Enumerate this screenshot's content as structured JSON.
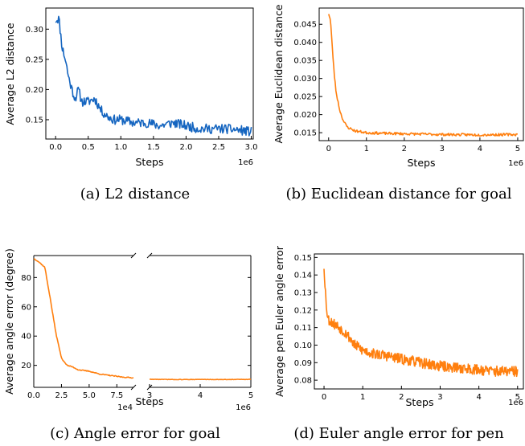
{
  "chart_data": [
    {
      "type": "line",
      "caption": "(a) L2 distance",
      "xlabel": "Steps",
      "ylabel": "Average L2 distance",
      "x_multiplier": "1e6",
      "xlim": [
        -0.15,
        3.03
      ],
      "ylim": [
        0.118,
        0.335
      ],
      "xticks": [
        0.0,
        0.5,
        1.0,
        1.5,
        2.0,
        2.5,
        3.0
      ],
      "xtick_labels": [
        "0.0",
        "0.5",
        "1.0",
        "1.5",
        "2.0",
        "2.5",
        "3.0"
      ],
      "yticks": [
        0.15,
        0.2,
        0.25,
        0.3
      ],
      "ytick_labels": [
        "0.15",
        "0.20",
        "0.25",
        "0.30"
      ],
      "color": "#1565c0",
      "series": [
        {
          "x": [
            0.0,
            0.05,
            0.1,
            0.15,
            0.2,
            0.25,
            0.3,
            0.35,
            0.4,
            0.5,
            0.6,
            0.7,
            0.8,
            0.9,
            1.0,
            1.2,
            1.4,
            1.6,
            1.8,
            2.0,
            2.2,
            2.4,
            2.6,
            2.8,
            3.0
          ],
          "y": [
            0.315,
            0.318,
            0.27,
            0.25,
            0.22,
            0.2,
            0.185,
            0.2,
            0.18,
            0.18,
            0.185,
            0.165,
            0.155,
            0.15,
            0.15,
            0.145,
            0.145,
            0.14,
            0.145,
            0.14,
            0.135,
            0.135,
            0.135,
            0.133,
            0.13
          ],
          "noise": 0.008
        }
      ]
    },
    {
      "type": "line",
      "caption": "(b) Euclidean distance for goal",
      "xlabel": "Steps",
      "ylabel": "Average Euclidean distance",
      "x_multiplier": "1e6",
      "xlim": [
        -0.25,
        5.15
      ],
      "ylim": [
        0.0128,
        0.0495
      ],
      "xticks": [
        0,
        1,
        2,
        3,
        4,
        5
      ],
      "xtick_labels": [
        "0",
        "1",
        "2",
        "3",
        "4",
        "5"
      ],
      "yticks": [
        0.015,
        0.02,
        0.025,
        0.03,
        0.035,
        0.04,
        0.045
      ],
      "ytick_labels": [
        "0.015",
        "0.020",
        "0.025",
        "0.030",
        "0.035",
        "0.040",
        "0.045"
      ],
      "color": "#ff7f0e",
      "series": [
        {
          "x": [
            0.0,
            0.05,
            0.1,
            0.15,
            0.2,
            0.3,
            0.4,
            0.5,
            0.7,
            1.0,
            1.5,
            2.0,
            3.0,
            4.0,
            5.0
          ],
          "y": [
            0.048,
            0.046,
            0.038,
            0.031,
            0.026,
            0.021,
            0.018,
            0.0165,
            0.0155,
            0.015,
            0.0148,
            0.0147,
            0.0145,
            0.0144,
            0.0145
          ],
          "noise": 0.00035
        }
      ]
    },
    {
      "type": "line",
      "caption": "(c) Angle error for goal",
      "xlabel": "Steps",
      "ylabel": "Average angle error (degree)",
      "broken_x_axis": true,
      "left_segment": {
        "x_multiplier": "1e4",
        "xlim": [
          0.0,
          9.0
        ],
        "xticks": [
          0.0,
          2.5,
          5.0,
          7.5
        ],
        "xtick_labels": [
          "0.0",
          "2.5",
          "5.0",
          "7.5"
        ]
      },
      "right_segment": {
        "x_multiplier": "1e6",
        "xlim": [
          3.0,
          5.0
        ],
        "xticks": [
          3,
          4,
          5
        ],
        "xtick_labels": [
          "3",
          "4",
          "5"
        ]
      },
      "ylim": [
        5,
        95
      ],
      "yticks": [
        20,
        40,
        60,
        80
      ],
      "ytick_labels": [
        "20",
        "40",
        "60",
        "80"
      ],
      "color": "#ff7f0e",
      "series": [
        {
          "segment": "left",
          "x": [
            0.0,
            0.4,
            1.0,
            1.5,
            2.0,
            2.5,
            3.0,
            3.5,
            4.0,
            5.0,
            6.0,
            7.0,
            8.0,
            9.0
          ],
          "y": [
            93,
            91,
            87,
            65,
            42,
            25,
            20,
            19,
            17,
            16,
            14,
            13,
            12,
            11.5
          ],
          "noise": 0.3
        },
        {
          "segment": "right",
          "x": [
            3.0,
            3.5,
            4.0,
            4.5,
            5.0
          ],
          "y": [
            10.5,
            10.3,
            10.4,
            10.3,
            10.5
          ],
          "noise": 0.15
        }
      ]
    },
    {
      "type": "line",
      "caption": "(d) Euler angle error for pen",
      "xlabel": "Steps",
      "ylabel": "Average pen Euler angle error",
      "x_multiplier": "1e6",
      "xlim": [
        -0.25,
        5.15
      ],
      "ylim": [
        0.075,
        0.152
      ],
      "xticks": [
        0,
        1,
        2,
        3,
        4,
        5
      ],
      "xtick_labels": [
        "0",
        "1",
        "2",
        "3",
        "4",
        "5"
      ],
      "yticks": [
        0.08,
        0.09,
        0.1,
        0.11,
        0.12,
        0.13,
        0.14,
        0.15
      ],
      "ytick_labels": [
        "0.08",
        "0.09",
        "0.10",
        "0.11",
        "0.12",
        "0.13",
        "0.14",
        "0.15"
      ],
      "color": "#ff7f0e",
      "series": [
        {
          "x": [
            0.0,
            0.05,
            0.1,
            0.2,
            0.4,
            0.6,
            0.8,
            1.0,
            1.3,
            1.6,
            2.0,
            2.5,
            3.0,
            3.5,
            4.0,
            4.5,
            5.0
          ],
          "y": [
            0.145,
            0.125,
            0.115,
            0.113,
            0.11,
            0.106,
            0.1,
            0.097,
            0.095,
            0.094,
            0.092,
            0.09,
            0.088,
            0.087,
            0.086,
            0.085,
            0.085
          ],
          "noise": 0.003
        }
      ]
    }
  ]
}
